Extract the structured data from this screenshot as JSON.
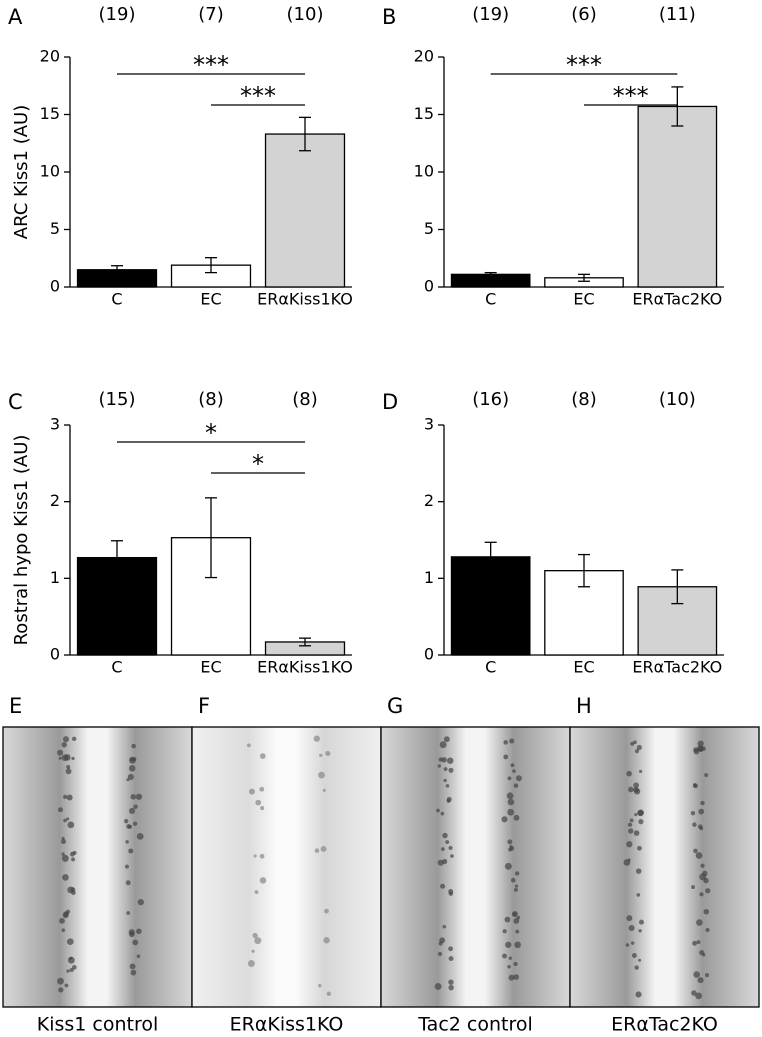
{
  "chart_data": [
    {
      "type": "bar",
      "panel": "A",
      "y_label": "ARC Kiss1 (AU)",
      "categories": [
        "C",
        "EC",
        "ERαKiss1KO"
      ],
      "values": [
        1.5,
        1.9,
        13.3
      ],
      "errors": [
        0.35,
        0.65,
        1.45
      ],
      "colors": [
        "#000000",
        "#ffffff",
        "#d3d3d3"
      ],
      "n_labels": [
        "(19)",
        "(7)",
        "(10)"
      ],
      "significance": [
        {
          "from": 0,
          "to": 2,
          "label": "***"
        },
        {
          "from": 1,
          "to": 2,
          "label": "***"
        }
      ],
      "ylim": [
        0,
        20
      ],
      "yticks": [
        0,
        5,
        10,
        15,
        20
      ]
    },
    {
      "type": "bar",
      "panel": "B",
      "categories": [
        "C",
        "EC",
        "ERαTac2KO"
      ],
      "values": [
        1.1,
        0.8,
        15.7
      ],
      "errors": [
        0.15,
        0.3,
        1.7
      ],
      "colors": [
        "#000000",
        "#ffffff",
        "#d3d3d3"
      ],
      "n_labels": [
        "(19)",
        "(6)",
        "(11)"
      ],
      "significance": [
        {
          "from": 0,
          "to": 2,
          "label": "***"
        },
        {
          "from": 1,
          "to": 2,
          "label": "***"
        }
      ],
      "ylim": [
        0,
        20
      ],
      "yticks": [
        0,
        5,
        10,
        15,
        20
      ]
    },
    {
      "type": "bar",
      "panel": "C",
      "y_label": "Rostral hypo Kiss1 (AU)",
      "categories": [
        "C",
        "EC",
        "ERαKiss1KO"
      ],
      "values": [
        1.27,
        1.53,
        0.17
      ],
      "errors": [
        0.22,
        0.52,
        0.05
      ],
      "colors": [
        "#000000",
        "#ffffff",
        "#d3d3d3"
      ],
      "n_labels": [
        "(15)",
        "(8)",
        "(8)"
      ],
      "significance": [
        {
          "from": 0,
          "to": 2,
          "label": "*"
        },
        {
          "from": 1,
          "to": 2,
          "label": "*"
        }
      ],
      "ylim": [
        0,
        3
      ],
      "yticks": [
        0,
        1,
        2,
        3
      ]
    },
    {
      "type": "bar",
      "panel": "D",
      "categories": [
        "C",
        "EC",
        "ERαTac2KO"
      ],
      "values": [
        1.28,
        1.1,
        0.89
      ],
      "errors": [
        0.19,
        0.21,
        0.22
      ],
      "colors": [
        "#000000",
        "#ffffff",
        "#d3d3d3"
      ],
      "n_labels": [
        "(16)",
        "(8)",
        "(10)"
      ],
      "significance": [],
      "ylim": [
        0,
        3
      ],
      "yticks": [
        0,
        1,
        2,
        3
      ]
    }
  ],
  "images": [
    {
      "panel": "E",
      "caption": "Kiss1 control"
    },
    {
      "panel": "F",
      "caption": "ERαKiss1KO"
    },
    {
      "panel": "G",
      "caption": "Tac2 control"
    },
    {
      "panel": "H",
      "caption": "ERαTac2KO"
    }
  ]
}
